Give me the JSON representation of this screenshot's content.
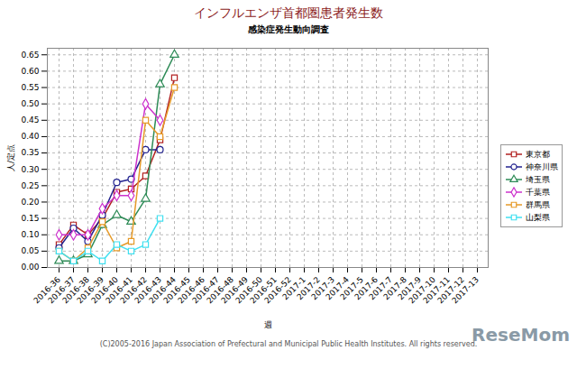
{
  "chart_data": {
    "type": "line",
    "title": "インフルエンザ首都圏患者発生数",
    "subtitle": "感染症発生動向調査",
    "x_label": "週",
    "y_label": "人/定点",
    "caption": "(C)2005-2016 Japan Association of Prefectural and Municipal Public Health Institutes. All rights reserved.",
    "annotations": [
      "ReseMom"
    ],
    "categories": [
      "2016-36",
      "2016-37",
      "2016-38",
      "2016-39",
      "2016-40",
      "2016-41",
      "2016-42",
      "2016-43",
      "2016-44",
      "2016-45",
      "2016-46",
      "2016-47",
      "2016-48",
      "2016-49",
      "2016-50",
      "2016-51",
      "2016-52",
      "2017-1",
      "2017-2",
      "2017-3",
      "2017-4",
      "2017-5",
      "2017-6",
      "2017-7",
      "2017-8",
      "2017-9",
      "2017-10",
      "2017-11",
      "2017-12",
      "2017-13"
    ],
    "series": [
      {
        "name": "東京都",
        "color": "#b22222",
        "marker": "square",
        "values": [
          0.07,
          0.13,
          0.1,
          0.15,
          0.23,
          0.24,
          0.28,
          0.39,
          0.58,
          null,
          null,
          null,
          null,
          null,
          null,
          null,
          null,
          null,
          null,
          null,
          null,
          null,
          null,
          null,
          null,
          null,
          null,
          null,
          null,
          null
        ]
      },
      {
        "name": "神奈川県",
        "color": "#22228f",
        "marker": "circle",
        "values": [
          0.06,
          0.12,
          0.08,
          0.16,
          0.26,
          0.27,
          0.36,
          0.36,
          null,
          null,
          null,
          null,
          null,
          null,
          null,
          null,
          null,
          null,
          null,
          null,
          null,
          null,
          null,
          null,
          null,
          null,
          null,
          null,
          null,
          null
        ]
      },
      {
        "name": "埼玉県",
        "color": "#2e8b57",
        "marker": "triangle",
        "values": [
          0.02,
          0.02,
          0.04,
          0.13,
          0.16,
          0.14,
          0.21,
          0.56,
          0.65,
          null,
          null,
          null,
          null,
          null,
          null,
          null,
          null,
          null,
          null,
          null,
          null,
          null,
          null,
          null,
          null,
          null,
          null,
          null,
          null,
          null
        ]
      },
      {
        "name": "千葉県",
        "color": "#cc33cc",
        "marker": "diamond",
        "values": [
          0.1,
          0.1,
          0.1,
          0.18,
          0.22,
          0.22,
          0.5,
          0.45,
          null,
          null,
          null,
          null,
          null,
          null,
          null,
          null,
          null,
          null,
          null,
          null,
          null,
          null,
          null,
          null,
          null,
          null,
          null,
          null,
          null,
          null
        ]
      },
      {
        "name": "群馬県",
        "color": "#e69a28",
        "marker": "square",
        "values": [
          0.05,
          0.02,
          0.06,
          0.14,
          0.06,
          0.08,
          0.45,
          0.4,
          0.55,
          null,
          null,
          null,
          null,
          null,
          null,
          null,
          null,
          null,
          null,
          null,
          null,
          null,
          null,
          null,
          null,
          null,
          null,
          null,
          null,
          null
        ]
      },
      {
        "name": "山梨県",
        "color": "#40e0f0",
        "marker": "square",
        "values": [
          0.05,
          0.02,
          0.05,
          0.02,
          0.07,
          0.05,
          0.07,
          0.15,
          null,
          null,
          null,
          null,
          null,
          null,
          null,
          null,
          null,
          null,
          null,
          null,
          null,
          null,
          null,
          null,
          null,
          null,
          null,
          null,
          null,
          null
        ]
      }
    ],
    "ylim": [
      0,
      0.67
    ],
    "yticks": [
      {
        "value": 0,
        "label": "0.00"
      },
      {
        "value": 0.05,
        "label": "0.05"
      },
      {
        "value": 0.1,
        "label": "0.10"
      },
      {
        "value": 0.15,
        "label": "0.15"
      },
      {
        "value": 0.2,
        "label": "0.20"
      },
      {
        "value": 0.25,
        "label": "0.25"
      },
      {
        "value": 0.3,
        "label": "0.30"
      },
      {
        "value": 0.35,
        "label": "0.35"
      },
      {
        "value": 0.4,
        "label": "0.40"
      },
      {
        "value": 0.45,
        "label": "0.45"
      },
      {
        "value": 0.5,
        "label": "0.50"
      },
      {
        "value": 0.55,
        "label": "0.55"
      },
      {
        "value": 0.6,
        "label": "0.60"
      },
      {
        "value": 0.65,
        "label": "0.65"
      }
    ],
    "grid": true,
    "legend": "right"
  }
}
